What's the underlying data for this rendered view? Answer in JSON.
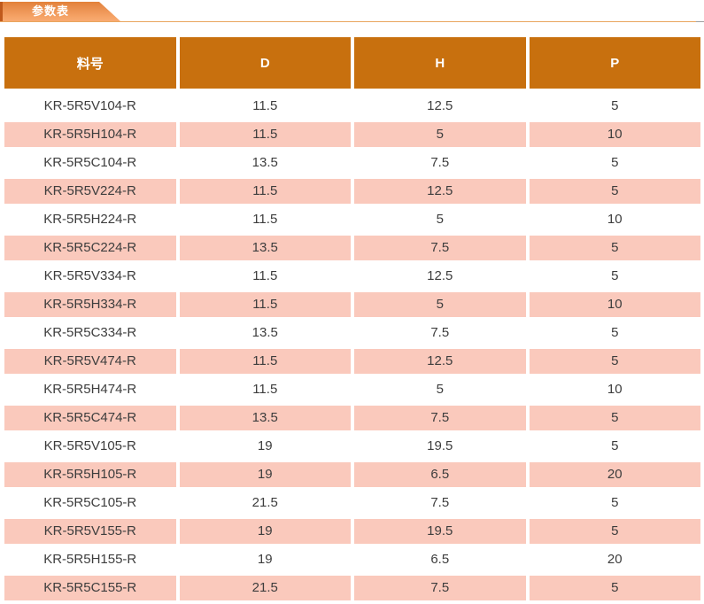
{
  "section": {
    "tab_label": "参数表"
  },
  "table": {
    "headers": [
      "料号",
      "D",
      "H",
      "P"
    ],
    "rows": [
      {
        "part": "KR-5R5V104-R",
        "d": "11.5",
        "h": "12.5",
        "p": "5"
      },
      {
        "part": "KR-5R5H104-R",
        "d": "11.5",
        "h": "5",
        "p": "10"
      },
      {
        "part": "KR-5R5C104-R",
        "d": "13.5",
        "h": "7.5",
        "p": "5"
      },
      {
        "part": "KR-5R5V224-R",
        "d": "11.5",
        "h": "12.5",
        "p": "5"
      },
      {
        "part": "KR-5R5H224-R",
        "d": "11.5",
        "h": "5",
        "p": "10"
      },
      {
        "part": "KR-5R5C224-R",
        "d": "13.5",
        "h": "7.5",
        "p": "5"
      },
      {
        "part": "KR-5R5V334-R",
        "d": "11.5",
        "h": "12.5",
        "p": "5"
      },
      {
        "part": "KR-5R5H334-R",
        "d": "11.5",
        "h": "5",
        "p": "10"
      },
      {
        "part": "KR-5R5C334-R",
        "d": "13.5",
        "h": "7.5",
        "p": "5"
      },
      {
        "part": "KR-5R5V474-R",
        "d": "11.5",
        "h": "12.5",
        "p": "5"
      },
      {
        "part": "KR-5R5H474-R",
        "d": "11.5",
        "h": "5",
        "p": "10"
      },
      {
        "part": "KR-5R5C474-R",
        "d": "13.5",
        "h": "7.5",
        "p": "5"
      },
      {
        "part": "KR-5R5V105-R",
        "d": "19",
        "h": "19.5",
        "p": "5"
      },
      {
        "part": "KR-5R5H105-R",
        "d": "19",
        "h": "6.5",
        "p": "20"
      },
      {
        "part": "KR-5R5C105-R",
        "d": "21.5",
        "h": "7.5",
        "p": "5"
      },
      {
        "part": "KR-5R5V155-R",
        "d": "19",
        "h": "19.5",
        "p": "5"
      },
      {
        "part": "KR-5R5H155-R",
        "d": "19",
        "h": "6.5",
        "p": "20"
      },
      {
        "part": "KR-5R5C155-R",
        "d": "21.5",
        "h": "7.5",
        "p": "5"
      }
    ]
  },
  "colors": {
    "header_bg": "#C8700E",
    "row_alt_bg": "#FAC9BC",
    "row_bg": "#FFFFFF",
    "text": "#3D3D3D",
    "tab_gradient_top": "#E2813A",
    "tab_gradient_bottom": "#F8AB72",
    "tab_accent": "#C05A1C",
    "divider": "#E9A55E",
    "divider_end": "#9E9E9E"
  }
}
